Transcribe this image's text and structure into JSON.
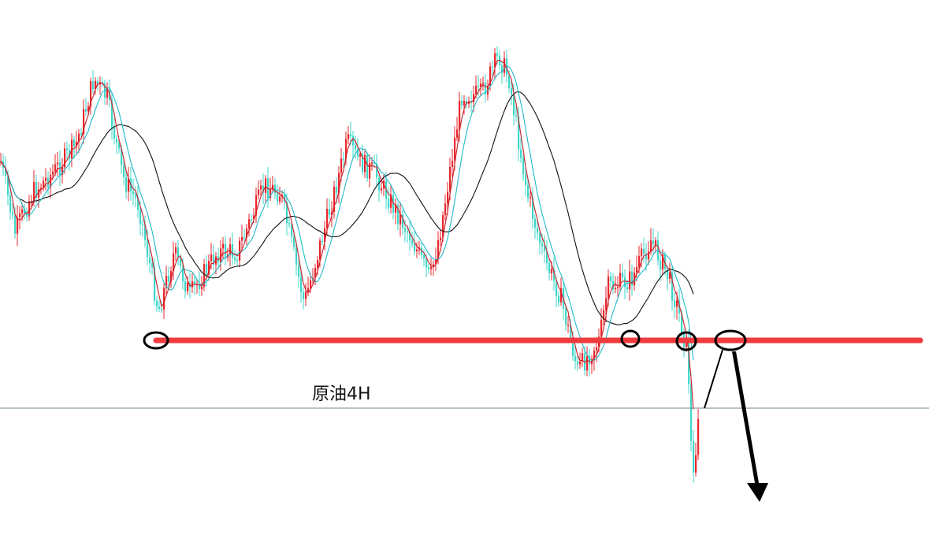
{
  "chart_data": {
    "type": "candlestick",
    "label": "原油4H",
    "colors": {
      "up": "#e8262b",
      "down": "#3ed6c8",
      "ma_fast": "#c9202a",
      "ma_mid": "#22b8c8",
      "ma_slow": "#111111",
      "support_line": "#ef3b3e",
      "price_line": "#6f8796",
      "annotation": "#000000"
    },
    "series": [
      {
        "name": "",
        "kind": "moving-average-fast"
      },
      {
        "name": "",
        "kind": "moving-average-mid"
      },
      {
        "name": "",
        "kind": "moving-average-slow"
      }
    ],
    "annotations": [
      {
        "kind": "horizontal-support-line"
      },
      {
        "kind": "circle-marker",
        "count": 4
      },
      {
        "kind": "breakdown-arrow"
      }
    ]
  }
}
